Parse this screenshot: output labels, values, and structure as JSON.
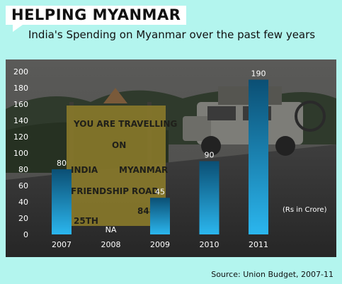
{
  "title": "HELPING MYANMAR",
  "subtitle": "India's Spending on Myanmar over the past few years",
  "source": "Source: Union Budget, 2007-11",
  "background_photo": {
    "sign_lines": [
      "YOU ARE TRAVELLING",
      "ON",
      "INDIA",
      "MYANMAR",
      "FRIENDSHIP",
      "ROAD",
      "25TH",
      "848"
    ]
  },
  "colors": {
    "page_background": "#b3f5ee",
    "bar_top": "#0b4f74",
    "bar_bottom": "#2bb6ee",
    "axis_text": "#ffffff"
  },
  "chart_data": {
    "type": "bar",
    "categories": [
      "2007",
      "2008",
      "2009",
      "2010",
      "2011"
    ],
    "values": [
      80,
      null,
      45,
      90,
      190
    ],
    "value_labels": [
      "80",
      "NA",
      "45",
      "90",
      "190"
    ],
    "unit_note": "(Rs in Crore)",
    "ylim": [
      0,
      200
    ],
    "yticks": [
      0,
      20,
      40,
      60,
      80,
      100,
      120,
      140,
      160,
      180,
      200
    ],
    "grid": false,
    "legend": "none"
  }
}
